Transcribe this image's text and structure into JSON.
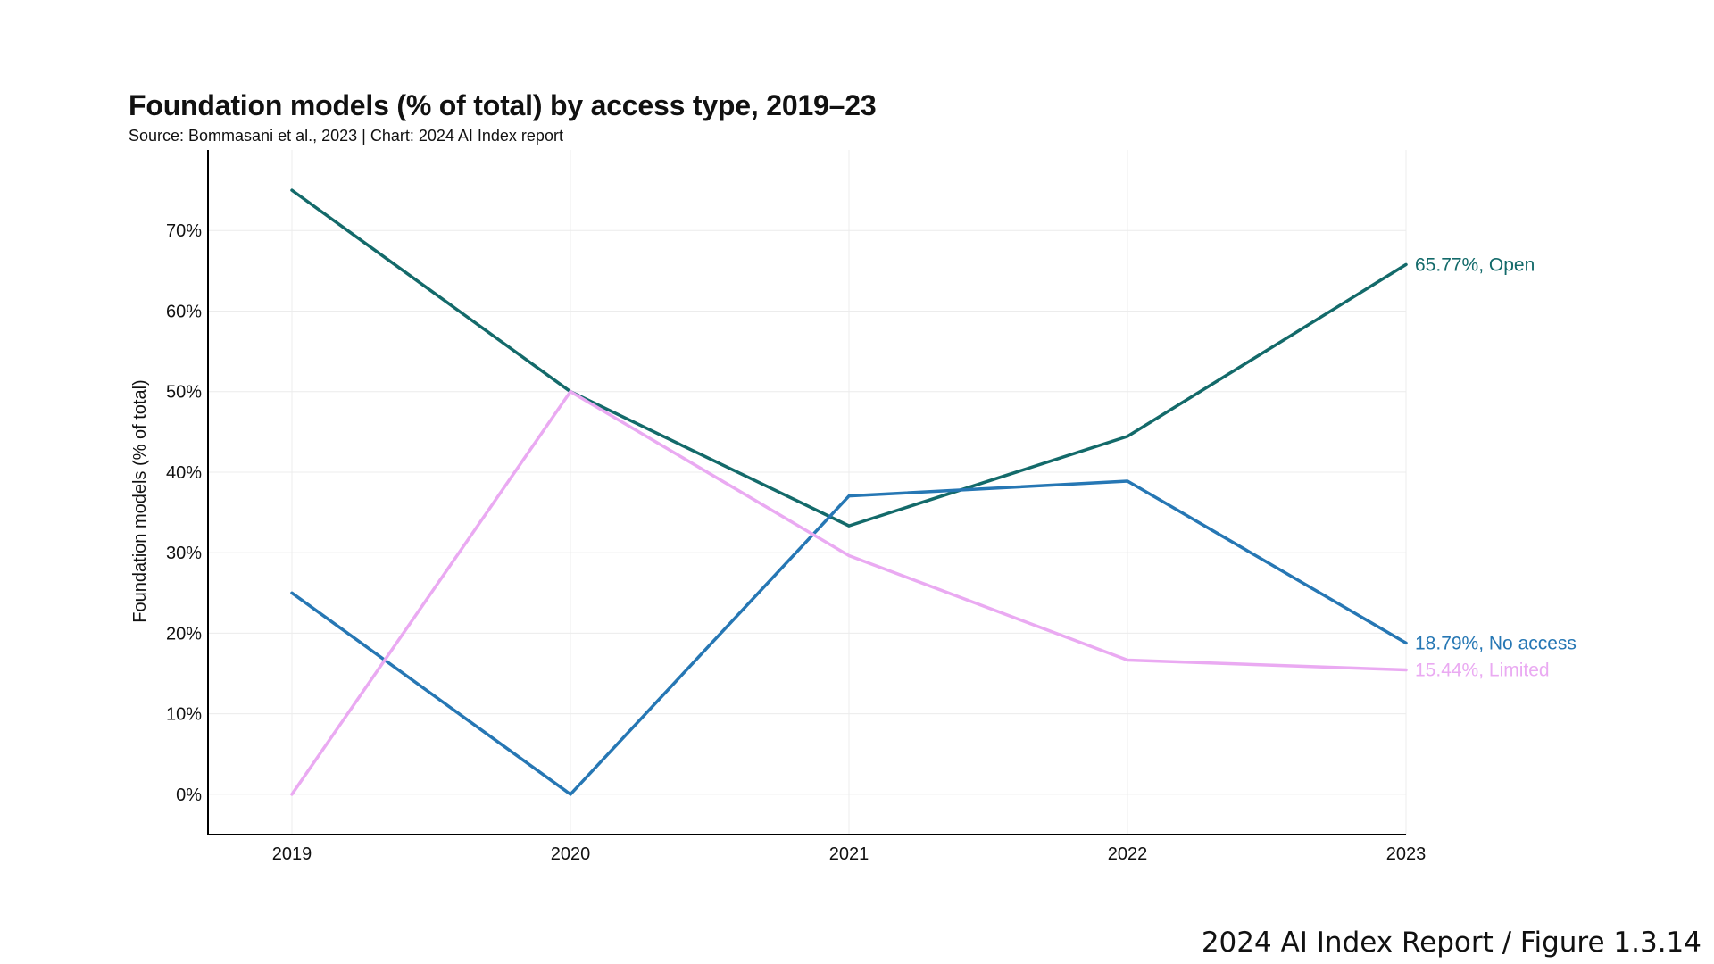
{
  "chart_data": {
    "type": "line",
    "title": "Foundation models (% of total) by access type, 2019–23",
    "subtitle": "Source: Bommasani et al., 2023 | Chart: 2024 AI Index report",
    "ylabel": "Foundation models (% of total)",
    "xlabel": "",
    "x": [
      "2019",
      "2020",
      "2021",
      "2022",
      "2023"
    ],
    "yticks": [
      0,
      10,
      20,
      30,
      40,
      50,
      60,
      70
    ],
    "ytick_labels": [
      "0%",
      "10%",
      "20%",
      "30%",
      "40%",
      "50%",
      "60%",
      "70%"
    ],
    "ylim": [
      -5,
      80
    ],
    "grid": true,
    "series": [
      {
        "name": "Open",
        "color": "#136a6a",
        "values": [
          75,
          50,
          33.33,
          44.44,
          65.77
        ],
        "end_label": "65.77%, Open"
      },
      {
        "name": "No access",
        "color": "#2677b4",
        "values": [
          25,
          0,
          37.04,
          38.89,
          18.79
        ],
        "end_label": "18.79%, No access"
      },
      {
        "name": "Limited",
        "color": "#eaaaf2",
        "values": [
          0,
          50,
          29.63,
          16.67,
          15.44
        ],
        "end_label": "15.44%, Limited"
      }
    ]
  },
  "caption": "2024 AI Index Report / Figure 1.3.14"
}
